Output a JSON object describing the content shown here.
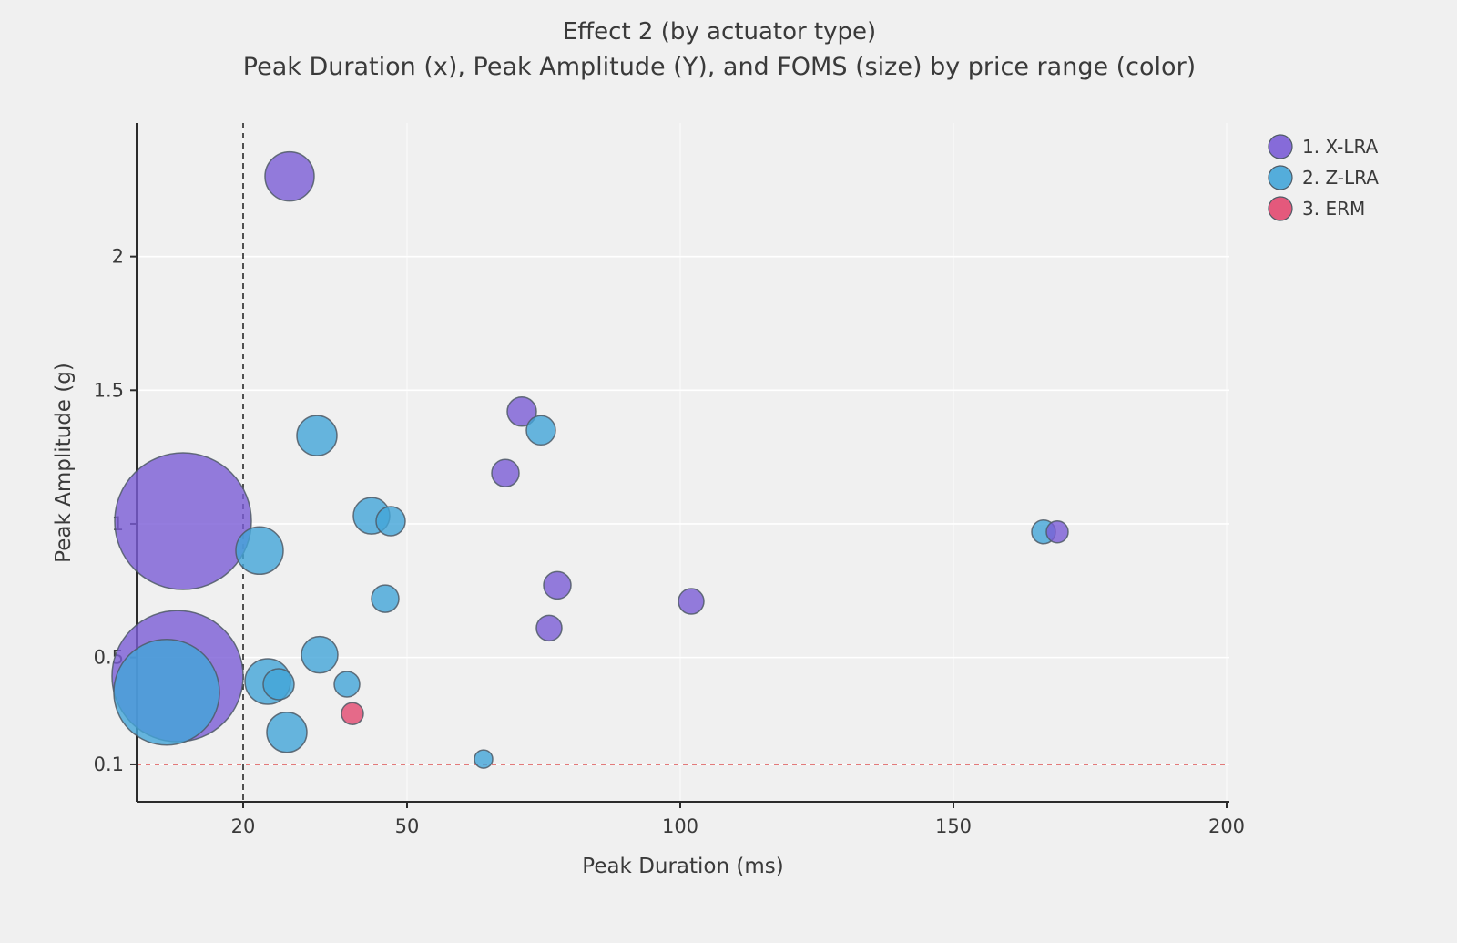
{
  "chart_data": {
    "type": "scatter",
    "title": "Effect 2 (by actuator type)",
    "subtitle": "Peak Duration (x), Peak Amplitude (Y), and FOMS (size) by price range (color)",
    "xlabel": "Peak Duration (ms)",
    "ylabel": "Peak Amplitude (g)",
    "xlim": [
      0.5,
      200.5
    ],
    "ylim": [
      -0.04,
      2.5
    ],
    "grid": true,
    "legend_position": "upper right",
    "xticks": [
      {
        "value": 20,
        "label": "20"
      },
      {
        "value": 50,
        "label": "50"
      },
      {
        "value": 100,
        "label": "100"
      },
      {
        "value": 150,
        "label": "150"
      },
      {
        "value": 200,
        "label": "200"
      }
    ],
    "yticks": [
      {
        "value": 0.1,
        "label": "0.1"
      },
      {
        "value": 0.5,
        "label": "0.5"
      },
      {
        "value": 1,
        "label": "1"
      },
      {
        "value": 1.5,
        "label": "1.5"
      },
      {
        "value": 2,
        "label": "2"
      }
    ],
    "reference_lines": [
      {
        "orientation": "vertical",
        "value": 20,
        "style": "dashed",
        "color": "#1a1a1a"
      },
      {
        "orientation": "horizontal",
        "value": 0.1,
        "style": "dashed",
        "color": "#d62f2f"
      }
    ],
    "legend": [
      {
        "label": "1. X-LRA",
        "color": "#7a5cd6"
      },
      {
        "label": "2. Z-LRA",
        "color": "#42a5d8"
      },
      {
        "label": "3. ERM",
        "color": "#e2486f"
      }
    ],
    "series": [
      {
        "name": "1. X-LRA",
        "color": "#7a5cd6",
        "points": [
          {
            "x": 28.5,
            "y": 2.3,
            "r": 27
          },
          {
            "x": 71,
            "y": 1.42,
            "r": 16
          },
          {
            "x": 68,
            "y": 1.19,
            "r": 15
          },
          {
            "x": 9,
            "y": 1.01,
            "r": 75
          },
          {
            "x": 169,
            "y": 0.97,
            "r": 12
          },
          {
            "x": 77.5,
            "y": 0.77,
            "r": 15
          },
          {
            "x": 102,
            "y": 0.71,
            "r": 14
          },
          {
            "x": 76,
            "y": 0.61,
            "r": 14
          },
          {
            "x": 8,
            "y": 0.43,
            "r": 72
          }
        ]
      },
      {
        "name": "2. Z-LRA",
        "color": "#42a5d8",
        "points": [
          {
            "x": 33.5,
            "y": 1.33,
            "r": 22
          },
          {
            "x": 74.5,
            "y": 1.35,
            "r": 16
          },
          {
            "x": 43.5,
            "y": 1.03,
            "r": 20
          },
          {
            "x": 47,
            "y": 1.01,
            "r": 16
          },
          {
            "x": 23,
            "y": 0.9,
            "r": 26
          },
          {
            "x": 166.5,
            "y": 0.97,
            "r": 13
          },
          {
            "x": 46,
            "y": 0.72,
            "r": 15
          },
          {
            "x": 34,
            "y": 0.51,
            "r": 20
          },
          {
            "x": 6,
            "y": 0.37,
            "r": 58
          },
          {
            "x": 24.5,
            "y": 0.41,
            "r": 25
          },
          {
            "x": 26.5,
            "y": 0.4,
            "r": 17
          },
          {
            "x": 39,
            "y": 0.4,
            "r": 14
          },
          {
            "x": 28,
            "y": 0.22,
            "r": 22
          },
          {
            "x": 64,
            "y": 0.12,
            "r": 10
          }
        ]
      },
      {
        "name": "3. ERM",
        "color": "#e2486f",
        "points": [
          {
            "x": 40,
            "y": 0.29,
            "r": 12
          }
        ]
      }
    ]
  },
  "colors": {
    "background": "#f0f0f0",
    "grid": "#ffffff",
    "axis": "#2b2b2b",
    "text": "#3a3a3a",
    "bubble_stroke": "#4f5b66"
  }
}
